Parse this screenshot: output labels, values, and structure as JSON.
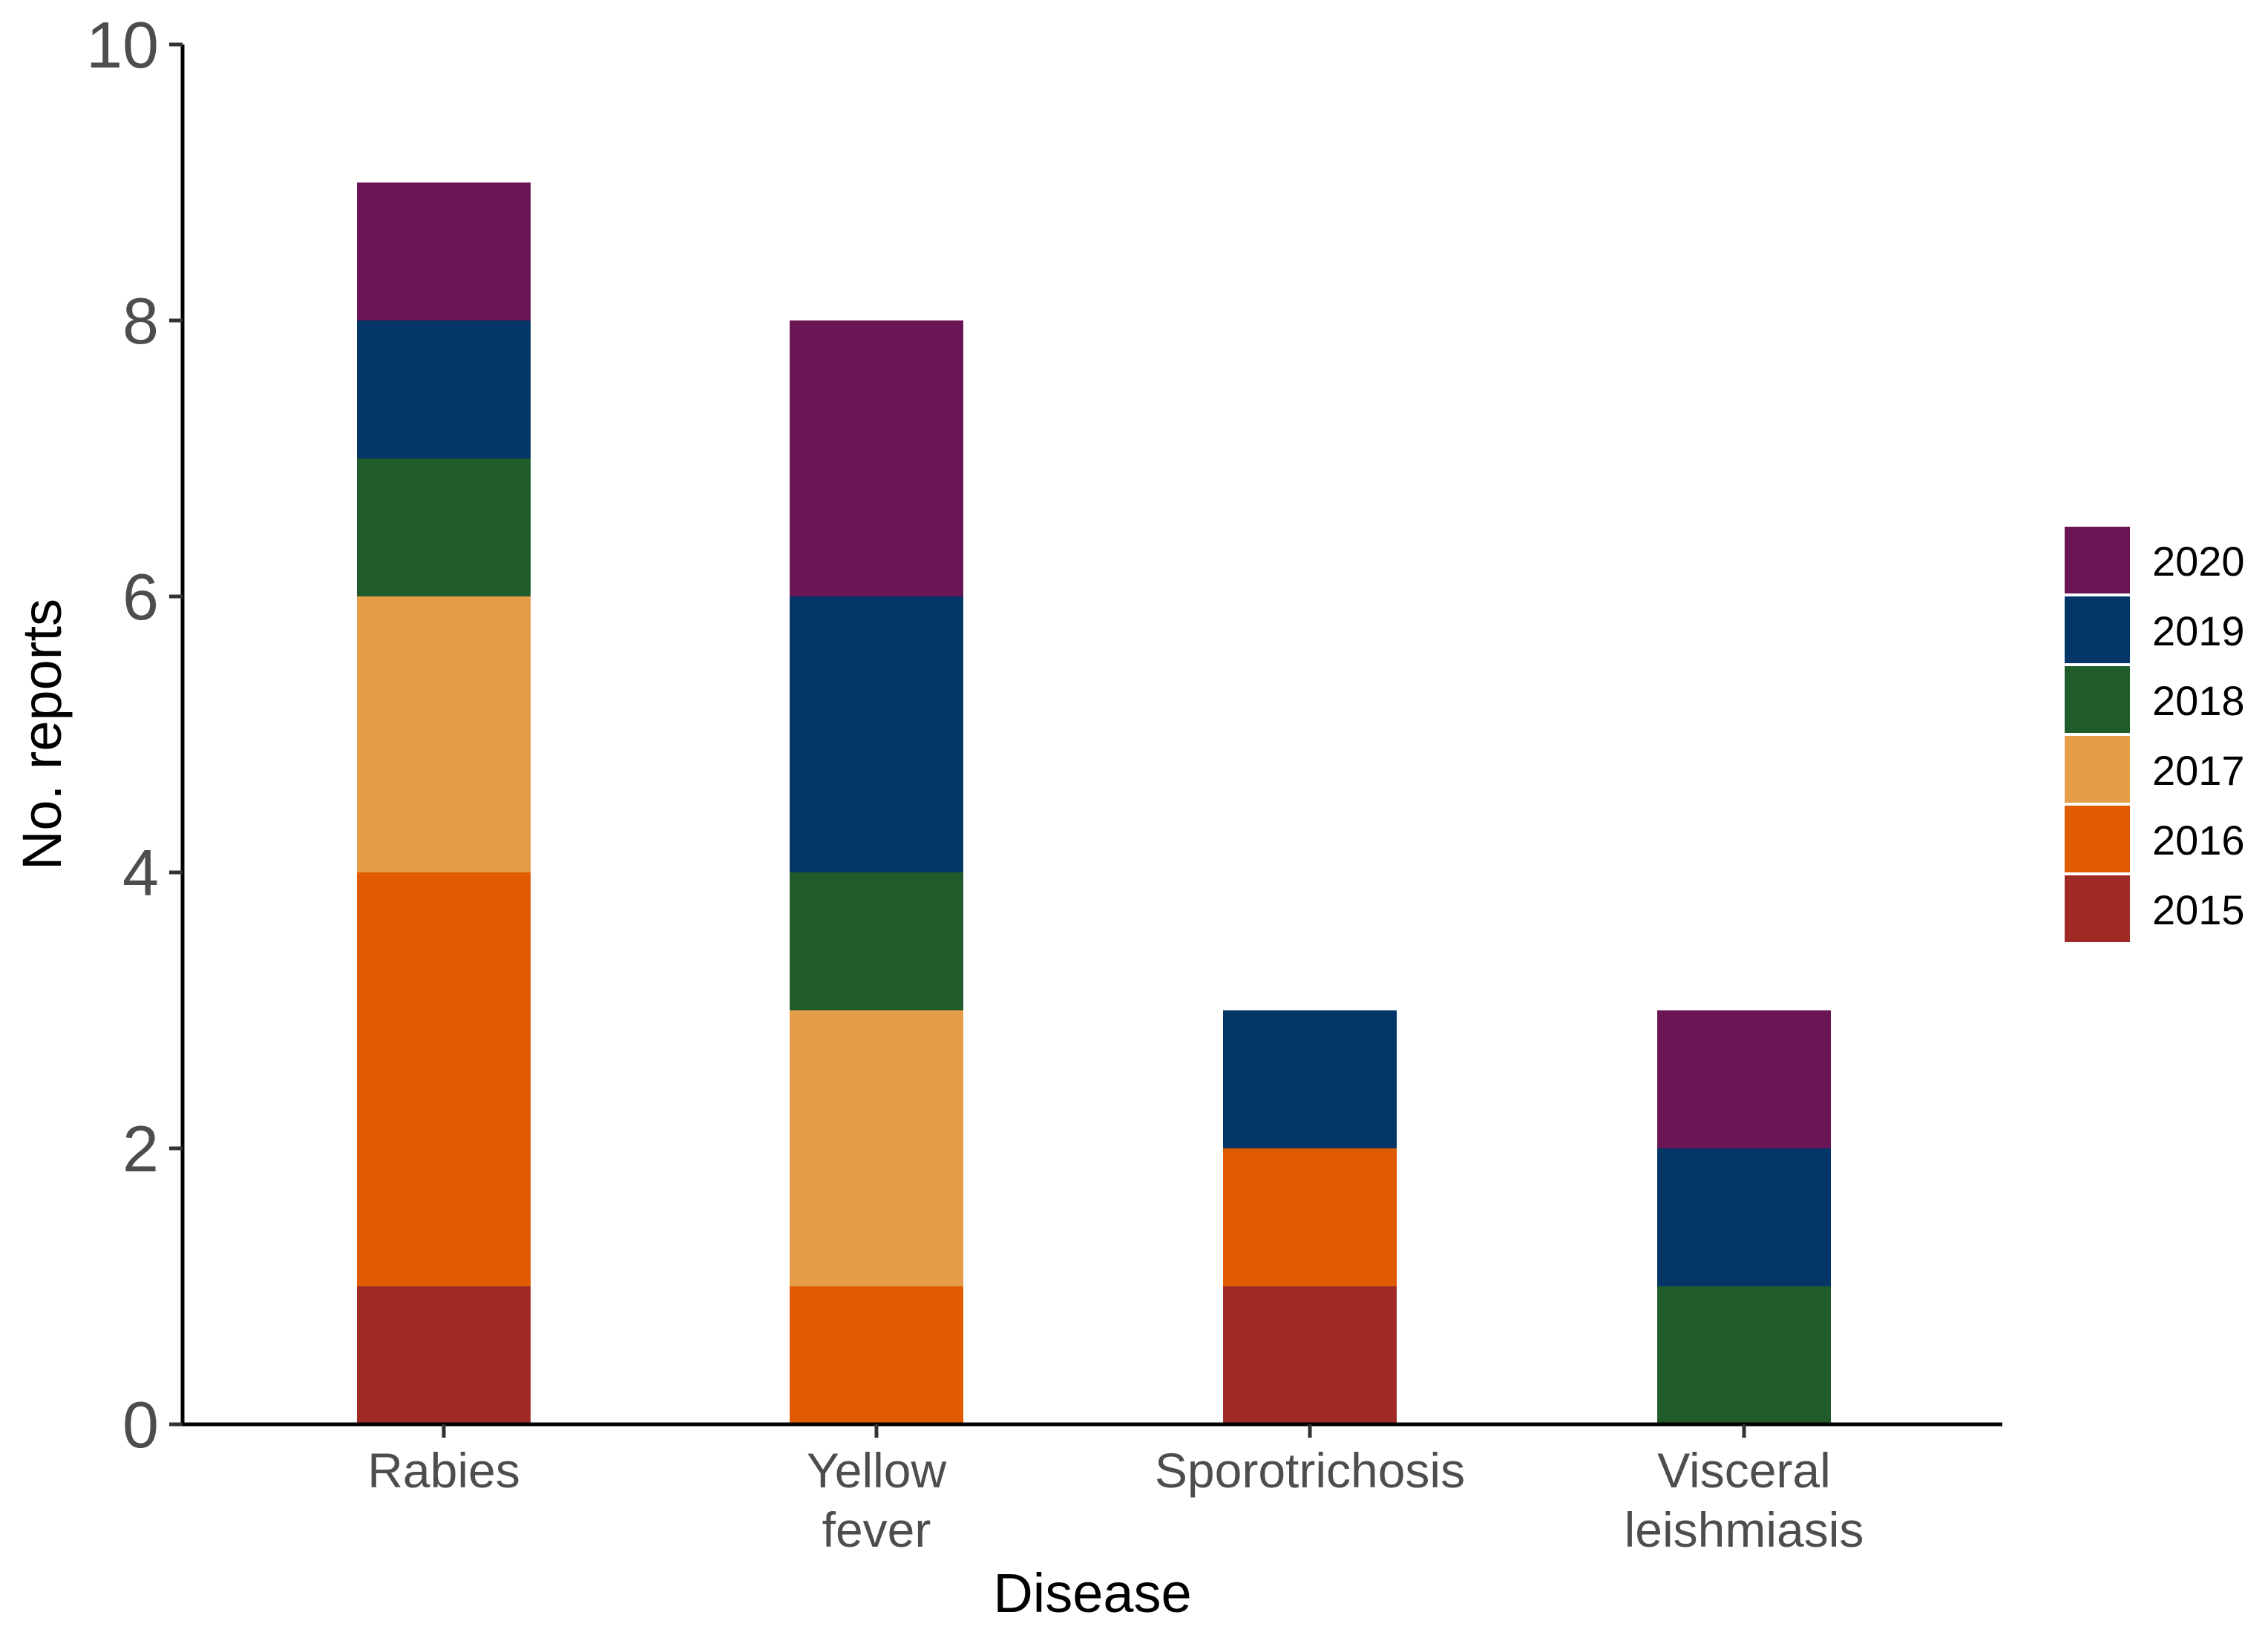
{
  "chart_data": {
    "type": "bar",
    "stacked": true,
    "title": "",
    "xlabel": "Disease",
    "ylabel": "No. reports",
    "ylim": [
      0,
      10
    ],
    "yticks": [
      "0",
      "2",
      "4",
      "6",
      "8",
      "10"
    ],
    "grid": false,
    "legend_position": "right",
    "categories": [
      {
        "key": "rabies",
        "lines": [
          "Rabies"
        ]
      },
      {
        "key": "yellow-fever",
        "lines": [
          "Yellow",
          "fever"
        ]
      },
      {
        "key": "sporotrichosis",
        "lines": [
          "Sporotrichosis"
        ]
      },
      {
        "key": "visceral-leishmiasis",
        "lines": [
          "Visceral",
          "leishmiasis"
        ]
      }
    ],
    "series": [
      {
        "name": "2015",
        "color": "#a02b26",
        "values": [
          1,
          0,
          1,
          0
        ]
      },
      {
        "name": "2016",
        "color": "#e05b00",
        "values": [
          3,
          1,
          1,
          0
        ]
      },
      {
        "name": "2017",
        "color": "#e69d48",
        "values": [
          2,
          2,
          0,
          0
        ]
      },
      {
        "name": "2018",
        "color": "#205c29",
        "values": [
          1,
          1,
          0,
          1
        ]
      },
      {
        "name": "2019",
        "color": "#033666",
        "values": [
          1,
          2,
          1,
          1
        ]
      },
      {
        "name": "2020",
        "color": "#6a1655",
        "values": [
          1,
          2,
          0,
          1
        ]
      }
    ],
    "legend_order": [
      "2020",
      "2019",
      "2018",
      "2017",
      "2016",
      "2015"
    ]
  }
}
